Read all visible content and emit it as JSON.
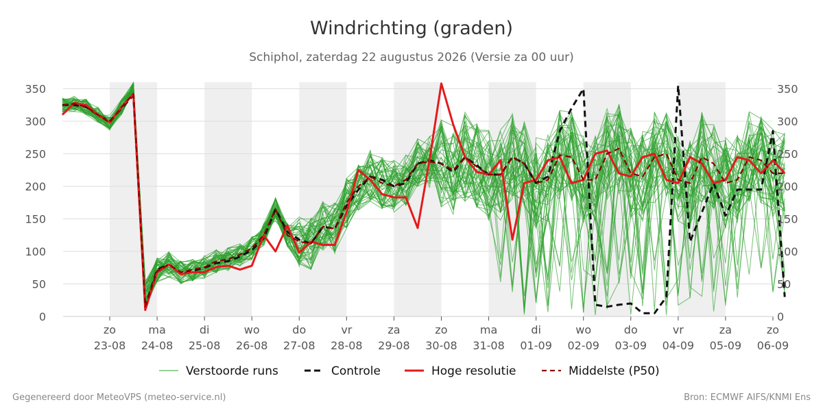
{
  "title": "Windrichting (graden)",
  "subtitle": "Schiphol, zaterdag 22 augustus 2026 (Versie za 00 uur)",
  "footer_left": "Gegenereerd door MeteoVPS (meteo-service.nl)",
  "footer_right": "Bron: ECMWF AIFS/KNMI Ens",
  "colors": {
    "ensemble": "#2ca02c",
    "control": "#111111",
    "hires": "#e41a1c",
    "median": "#8b0000",
    "band": "#efefef",
    "grid": "#dddddd"
  },
  "legend": [
    {
      "key": "ensemble",
      "label": "Verstoorde runs"
    },
    {
      "key": "control",
      "label": "Controle"
    },
    {
      "key": "hires",
      "label": "Hoge resolutie"
    },
    {
      "key": "median",
      "label": "Middelste (P50)"
    }
  ],
  "chart_data": {
    "type": "line",
    "ylabel": "",
    "ylim": [
      0,
      360
    ],
    "yticks": [
      0,
      50,
      100,
      150,
      200,
      250,
      300,
      350
    ],
    "x_start": "2026-08-22T00:00",
    "x_end": "2026-09-06T00:00",
    "x_step_hours": 6,
    "x_ticks": [
      {
        "day": "zo",
        "date": "23-08"
      },
      {
        "day": "ma",
        "date": "24-08"
      },
      {
        "day": "di",
        "date": "25-08"
      },
      {
        "day": "wo",
        "date": "26-08"
      },
      {
        "day": "do",
        "date": "27-08"
      },
      {
        "day": "vr",
        "date": "28-08"
      },
      {
        "day": "za",
        "date": "29-08"
      },
      {
        "day": "zo",
        "date": "30-08"
      },
      {
        "day": "ma",
        "date": "31-08"
      },
      {
        "day": "di",
        "date": "01-09"
      },
      {
        "day": "wo",
        "date": "02-09"
      },
      {
        "day": "do",
        "date": "03-09"
      },
      {
        "day": "vr",
        "date": "04-09"
      },
      {
        "day": "za",
        "date": "05-09"
      },
      {
        "day": "zo",
        "date": "06-09"
      }
    ],
    "shaded_days": [
      "23-08",
      "25-08",
      "27-08",
      "29-08",
      "31-08",
      "02-09",
      "04-09"
    ],
    "series": [
      {
        "name": "Controle",
        "key": "control",
        "values": [
          325,
          325,
          322,
          310,
          300,
          320,
          340,
          15,
          72,
          80,
          65,
          70,
          75,
          82,
          85,
          92,
          102,
          120,
          165,
          130,
          118,
          112,
          138,
          135,
          170,
          195,
          215,
          210,
          200,
          205,
          235,
          240,
          235,
          222,
          245,
          232,
          218,
          218,
          245,
          235,
          205,
          215,
          285,
          320,
          350,
          18,
          15,
          18,
          20,
          5,
          5,
          30,
          355,
          115,
          160,
          205,
          155,
          195,
          195,
          195,
          285,
          30
        ]
      },
      {
        "name": "Hoge resolutie",
        "key": "hires",
        "values": [
          310,
          328,
          325,
          310,
          298,
          322,
          342,
          10,
          68,
          80,
          65,
          68,
          68,
          76,
          78,
          72,
          78,
          125,
          100,
          140,
          98,
          115,
          110,
          110,
          160,
          225,
          210,
          188,
          183,
          183,
          136,
          240,
          358,
          295,
          245,
          222,
          218,
          240,
          118,
          205,
          210,
          240,
          245,
          205,
          210,
          250,
          255,
          220,
          215,
          245,
          250,
          210,
          205,
          245,
          235,
          205,
          210,
          245,
          240,
          220,
          240,
          220
        ]
      },
      {
        "name": "Middelste (P50)",
        "key": "median",
        "values": [
          325,
          327,
          322,
          310,
          298,
          322,
          342,
          15,
          70,
          80,
          68,
          72,
          76,
          85,
          88,
          95,
          105,
          125,
          165,
          125,
          115,
          112,
          138,
          135,
          175,
          200,
          215,
          205,
          200,
          210,
          235,
          238,
          235,
          225,
          245,
          230,
          218,
          218,
          245,
          235,
          205,
          210,
          248,
          245,
          210,
          210,
          250,
          258,
          220,
          215,
          245,
          250,
          210,
          205,
          245,
          235,
          205,
          210,
          245,
          240,
          220,
          220
        ]
      }
    ]
  }
}
